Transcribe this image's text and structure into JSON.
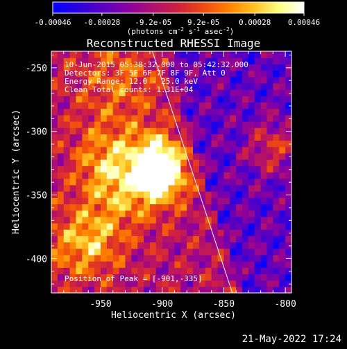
{
  "chart_data": {
    "type": "heatmap",
    "title": "Reconstructed RHESSI Image",
    "xlabel": "Heliocentric X (arcsec)",
    "ylabel": "Heliocentric Y (arcsec)",
    "xlim": [
      -990,
      -795
    ],
    "ylim": [
      -427,
      -237
    ],
    "xticks": [
      -950,
      -900,
      -850,
      -800
    ],
    "xtick_labels": [
      "-950",
      "-900",
      "-850",
      "-800"
    ],
    "yticks": [
      -250,
      -300,
      -350,
      -400
    ],
    "ytick_labels": [
      "-250",
      "-300",
      "-350",
      "-400"
    ],
    "colorbar": {
      "ticks": [
        -0.00046,
        -0.00028,
        -9.2e-05,
        9.2e-05,
        0.00028,
        0.00046
      ],
      "tick_labels": [
        "-0.00046",
        "-0.00028",
        "-9.2e-05",
        "9.2e-05",
        "0.00028",
        "0.00046"
      ],
      "units_text": "(photons cm",
      "units_exp1": "-2",
      "units_mid": " s",
      "units_exp2": "-1",
      "units_end": " asec",
      "units_exp3": "-2",
      "units_close": ")",
      "colormap": [
        "#0000ff",
        "#2a00e0",
        "#5a00c0",
        "#8a00a0",
        "#b01070",
        "#d02040",
        "#ee4a10",
        "#ff8000",
        "#ffc020",
        "#ffff80",
        "#ffffff"
      ]
    },
    "annotations": [
      "10-Jun-2015 05:38:32.000 to 05:42:32.000",
      "Detectors: 3F 5F 6F 7F 8F 9F, Att 0",
      "Energy Range: 12.0 - 25.0 keV",
      "Clean     Total counts: 1.31E+04",
      "Position of Peak = [-901,-335]"
    ],
    "peak": [
      -901,
      -335
    ],
    "limb_line": [
      [
        -908,
        -237
      ],
      [
        -843,
        -427
      ]
    ],
    "sources": [
      {
        "x": -900,
        "y": -335,
        "sigma": 14,
        "amp": 1.05
      },
      {
        "x": -905,
        "y": -318,
        "sigma": 14,
        "amp": 0.65
      },
      {
        "x": -930,
        "y": -345,
        "sigma": 22,
        "amp": 0.55
      },
      {
        "x": -945,
        "y": -320,
        "sigma": 20,
        "amp": 0.45
      },
      {
        "x": -810,
        "y": -312,
        "sigma": 15,
        "amp": 0.55
      },
      {
        "x": -935,
        "y": -260,
        "sigma": 25,
        "amp": 0.4
      },
      {
        "x": -970,
        "y": -390,
        "sigma": 22,
        "amp": 0.4
      },
      {
        "x": -955,
        "y": -385,
        "sigma": 16,
        "amp": 0.35
      }
    ]
  },
  "footer": {
    "date": "21-May-2022 17:24"
  }
}
